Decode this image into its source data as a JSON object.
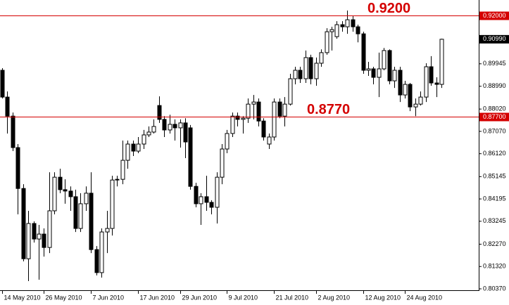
{
  "chart_data": {
    "type": "candlestick",
    "categories": [
      "14 May 2010",
      null,
      null,
      null,
      null,
      null,
      null,
      null,
      "26 May 2010",
      null,
      null,
      null,
      null,
      null,
      null,
      null,
      null,
      "7 Jun 2010",
      null,
      null,
      null,
      null,
      null,
      null,
      null,
      null,
      "17 Jun 2010",
      null,
      null,
      null,
      null,
      null,
      null,
      null,
      "29 Jun 2010",
      null,
      null,
      null,
      null,
      null,
      null,
      null,
      null,
      "9 Jul 2010",
      null,
      null,
      null,
      null,
      null,
      null,
      null,
      null,
      "21 Jul 2010",
      null,
      null,
      null,
      null,
      null,
      null,
      null,
      "2 Aug 2010",
      null,
      null,
      null,
      null,
      null,
      null,
      null,
      null,
      "12 Aug 2010",
      null,
      null,
      null,
      null,
      null,
      null,
      null,
      "24 Aug 2010",
      null,
      null,
      null,
      null,
      null,
      null,
      null
    ],
    "open": [
      0.8967,
      0.8853,
      0.8772,
      0.8638,
      0.8464,
      0.8165,
      0.8315,
      0.8249,
      0.827,
      0.8213,
      0.8369,
      0.8512,
      0.8459,
      0.8453,
      0.8429,
      0.8294,
      0.8399,
      0.8444,
      0.8204,
      0.8106,
      0.8279,
      0.8294,
      0.85,
      0.8503,
      0.8584,
      0.8653,
      0.8623,
      0.8653,
      0.8692,
      0.8704,
      0.8817,
      0.8758,
      0.8713,
      0.8737,
      0.8722,
      0.8743,
      0.8722,
      0.8473,
      0.8399,
      0.8429,
      0.8405,
      0.8384,
      0.8512,
      0.8632,
      0.8698,
      0.8772,
      0.8758,
      0.8763,
      0.8823,
      0.8832,
      0.8751,
      0.8653,
      0.8683,
      0.8832,
      0.8772,
      0.8823,
      0.8931,
      0.8967,
      0.8931,
      0.9021,
      0.8931,
      0.8997,
      0.9042,
      0.9131,
      0.911,
      0.9161,
      0.9152,
      0.9182,
      0.9152,
      0.9122,
      0.8967,
      0.8973,
      0.8937,
      0.8973,
      0.9051,
      0.8922,
      0.8967,
      0.8862,
      0.8907,
      0.8811,
      0.8823,
      0.8853,
      0.8982,
      0.8913,
      0.8907
    ],
    "high": [
      0.8976,
      0.8877,
      0.8787,
      0.8653,
      0.8482,
      0.8369,
      0.8324,
      0.8309,
      0.8294,
      0.8533,
      0.8533,
      0.8548,
      0.8503,
      0.8473,
      0.8459,
      0.8444,
      0.8473,
      0.8533,
      0.8219,
      0.8294,
      0.8369,
      0.8518,
      0.8518,
      0.8668,
      0.8668,
      0.8668,
      0.8683,
      0.8713,
      0.8728,
      0.8758,
      0.8856,
      0.8772,
      0.8778,
      0.8758,
      0.8758,
      0.8763,
      0.8734,
      0.8488,
      0.8444,
      0.8518,
      0.8414,
      0.8533,
      0.8653,
      0.8713,
      0.8787,
      0.8787,
      0.8772,
      0.8847,
      0.8862,
      0.8847,
      0.8763,
      0.8698,
      0.8847,
      0.8847,
      0.8853,
      0.8952,
      0.8982,
      0.8982,
      0.9051,
      0.9033,
      0.9021,
      0.9056,
      0.9146,
      0.9152,
      0.9176,
      0.9176,
      0.9221,
      0.92,
      0.9161,
      0.9131,
      0.9003,
      0.8982,
      0.9042,
      0.9062,
      0.9056,
      0.8982,
      0.8982,
      0.8922,
      0.8913,
      0.8847,
      0.8877,
      0.8997,
      0.9027,
      0.8937,
      0.9101
    ],
    "low": [
      0.8847,
      0.8698,
      0.8623,
      0.8354,
      0.8154,
      0.807,
      0.8234,
      0.8076,
      0.8174,
      0.8189,
      0.8354,
      0.8444,
      0.8399,
      0.8369,
      0.8279,
      0.8279,
      0.8369,
      0.8189,
      0.8094,
      0.8085,
      0.8189,
      0.8264,
      0.8473,
      0.8482,
      0.8548,
      0.8602,
      0.8614,
      0.8632,
      0.8683,
      0.8698,
      0.8743,
      0.8683,
      0.8698,
      0.8668,
      0.8638,
      0.8593,
      0.8459,
      0.8384,
      0.8309,
      0.8369,
      0.8354,
      0.8315,
      0.8482,
      0.8614,
      0.8683,
      0.8728,
      0.8698,
      0.8743,
      0.8758,
      0.8728,
      0.8668,
      0.8632,
      0.8668,
      0.8763,
      0.8728,
      0.8817,
      0.8907,
      0.8913,
      0.8913,
      0.8907,
      0.8901,
      0.8982,
      0.9033,
      0.9051,
      0.9101,
      0.9131,
      0.9122,
      0.9131,
      0.9086,
      0.8952,
      0.8943,
      0.8907,
      0.8853,
      0.8967,
      0.8907,
      0.8892,
      0.8832,
      0.8847,
      0.8793,
      0.8772,
      0.8817,
      0.8832,
      0.8901,
      0.8853,
      0.8892
    ],
    "close": [
      0.8853,
      0.8772,
      0.8638,
      0.8464,
      0.8165,
      0.8315,
      0.8249,
      0.827,
      0.8213,
      0.8369,
      0.8512,
      0.8459,
      0.8453,
      0.8429,
      0.8294,
      0.8399,
      0.8444,
      0.8204,
      0.8106,
      0.8279,
      0.8294,
      0.85,
      0.8503,
      0.8584,
      0.8653,
      0.8623,
      0.8653,
      0.8692,
      0.8704,
      0.8728,
      0.8758,
      0.8713,
      0.8737,
      0.8722,
      0.8743,
      0.8662,
      0.8473,
      0.8399,
      0.8429,
      0.8405,
      0.8384,
      0.8512,
      0.8632,
      0.8698,
      0.8772,
      0.8758,
      0.8763,
      0.8823,
      0.8832,
      0.8751,
      0.8683,
      0.8683,
      0.8832,
      0.8772,
      0.8823,
      0.8931,
      0.8967,
      0.8931,
      0.9021,
      0.8931,
      0.8997,
      0.9042,
      0.9131,
      0.914,
      0.9161,
      0.9152,
      0.9182,
      0.9152,
      0.9122,
      0.8967,
      0.8973,
      0.8937,
      0.8973,
      0.9051,
      0.8922,
      0.8967,
      0.8862,
      0.8907,
      0.8811,
      0.8823,
      0.8853,
      0.8982,
      0.8913,
      0.8907,
      0.9099
    ],
    "ylim": [
      0.8031,
      0.9266
    ],
    "yticks": [
      {
        "value": 0.89945,
        "label": "0.89945"
      },
      {
        "value": 0.8899,
        "label": "0.88990"
      },
      {
        "value": 0.8802,
        "label": "0.88020"
      },
      {
        "value": 0.8707,
        "label": "0.87070"
      },
      {
        "value": 0.8612,
        "label": "0.86120"
      },
      {
        "value": 0.85145,
        "label": "0.85145"
      },
      {
        "value": 0.84195,
        "label": "0.84195"
      },
      {
        "value": 0.83245,
        "label": "0.83245"
      },
      {
        "value": 0.8227,
        "label": "0.82270"
      },
      {
        "value": 0.8132,
        "label": "0.81320"
      },
      {
        "value": 0.8037,
        "label": "0.80370"
      }
    ],
    "levels": [
      {
        "value": 0.92,
        "label": "0.92000",
        "annotation": "0.9200",
        "color": "#d40000"
      },
      {
        "value": 0.877,
        "label": "0.87700",
        "annotation": "0.8770",
        "color": "#d40000"
      }
    ],
    "current_price": {
      "value": 0.9099,
      "label": "0.90990"
    }
  }
}
